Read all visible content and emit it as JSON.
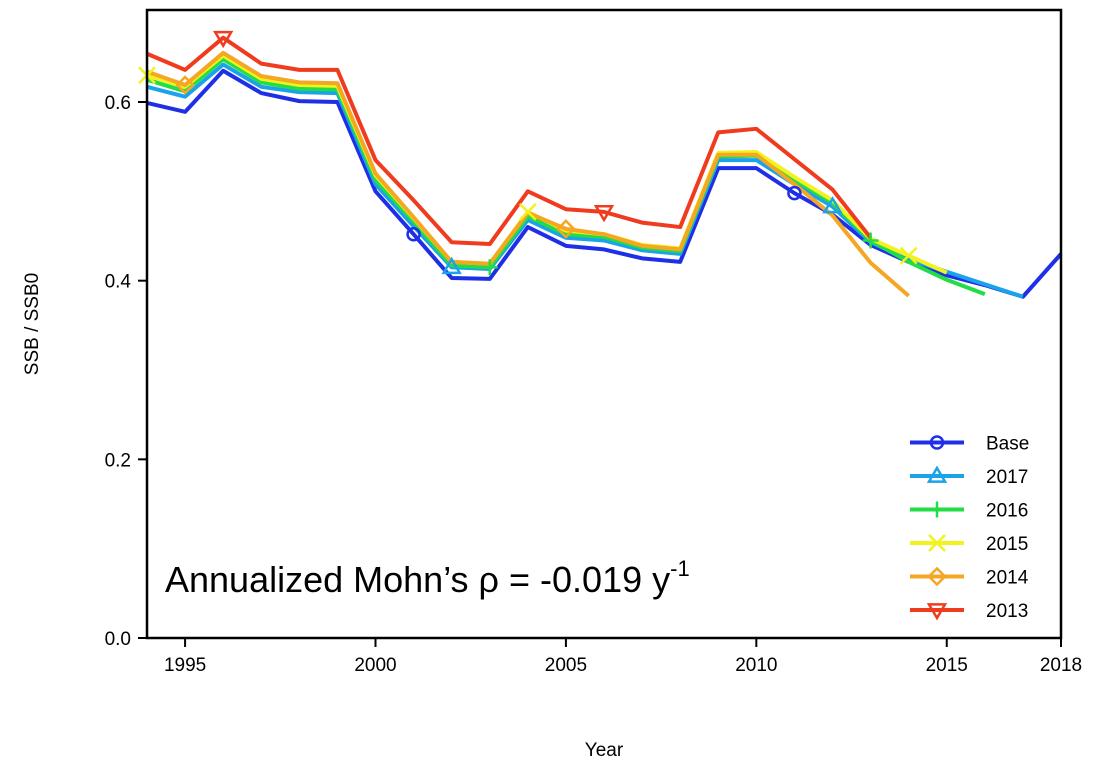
{
  "chart_data": {
    "type": "line",
    "x_label": "Year",
    "y_label": "SSB / SSB0",
    "annotation": "Annualized Mohn’s ρ = -0.019 y",
    "annotation_superscript": "-1",
    "x": [
      1994,
      1995,
      1996,
      1997,
      1998,
      1999,
      2000,
      2001,
      2002,
      2003,
      2004,
      2005,
      2006,
      2007,
      2008,
      2009,
      2010,
      2011,
      2012,
      2013,
      2014,
      2015,
      2016,
      2017,
      2018
    ],
    "xlim": [
      1994,
      2018
    ],
    "xticks": [
      1995,
      2000,
      2005,
      2010,
      2015,
      2018
    ],
    "ylim": [
      0,
      0.703
    ],
    "yticks": [
      {
        "value": 0,
        "label": "0.0"
      },
      0.2,
      0.4,
      0.6
    ],
    "legend": "bottom-right",
    "series": [
      {
        "name": "Base",
        "color": "#1f2fe6",
        "marker": "circle",
        "values": [
          0.599,
          0.589,
          0.635,
          0.61,
          0.601,
          0.6,
          0.5,
          0.452,
          0.403,
          0.402,
          0.46,
          0.439,
          0.435,
          0.425,
          0.421,
          0.526,
          0.526,
          0.498,
          0.474,
          0.44,
          0.421,
          0.406,
          0.395,
          0.382,
          0.43
        ]
      },
      {
        "name": "2017",
        "color": "#1aa3ea",
        "marker": "triangle-up",
        "values": [
          0.617,
          0.606,
          0.642,
          0.617,
          0.611,
          0.61,
          0.508,
          0.461,
          0.415,
          0.413,
          0.468,
          0.448,
          0.445,
          0.434,
          0.43,
          0.535,
          0.535,
          0.508,
          0.483,
          0.443,
          0.424,
          0.41,
          0.396,
          0.382,
          null
        ]
      },
      {
        "name": "2016",
        "color": "#22dd44",
        "marker": "plus",
        "values": [
          0.625,
          0.612,
          0.648,
          0.622,
          0.615,
          0.614,
          0.513,
          0.466,
          0.417,
          0.415,
          0.472,
          0.452,
          0.449,
          0.437,
          0.433,
          0.539,
          0.54,
          0.513,
          0.487,
          0.445,
          0.421,
          0.401,
          0.385,
          null,
          null
        ]
      },
      {
        "name": "2015",
        "color": "#f2f21e",
        "marker": "x",
        "values": [
          0.63,
          0.617,
          0.652,
          0.626,
          0.619,
          0.618,
          0.518,
          0.47,
          0.421,
          0.419,
          0.477,
          0.456,
          0.452,
          0.44,
          0.436,
          0.543,
          0.544,
          0.516,
          0.49,
          0.447,
          0.428,
          0.409,
          null,
          null,
          null
        ]
      },
      {
        "name": "2014",
        "color": "#f5a623",
        "marker": "diamond",
        "values": [
          0.634,
          0.619,
          0.655,
          0.629,
          0.622,
          0.621,
          0.52,
          0.471,
          0.421,
          0.419,
          0.476,
          0.458,
          0.452,
          0.439,
          0.435,
          0.541,
          0.541,
          0.508,
          0.473,
          0.42,
          0.383,
          null,
          null,
          null,
          null
        ]
      },
      {
        "name": "2013",
        "color": "#f03c1e",
        "marker": "triangle-down",
        "values": [
          0.654,
          0.636,
          0.672,
          0.643,
          0.636,
          0.636,
          0.535,
          0.49,
          0.443,
          0.441,
          0.5,
          0.48,
          0.477,
          0.465,
          0.46,
          0.566,
          0.57,
          0.536,
          0.502,
          0.448,
          null,
          null,
          null,
          null,
          null
        ]
      }
    ]
  }
}
